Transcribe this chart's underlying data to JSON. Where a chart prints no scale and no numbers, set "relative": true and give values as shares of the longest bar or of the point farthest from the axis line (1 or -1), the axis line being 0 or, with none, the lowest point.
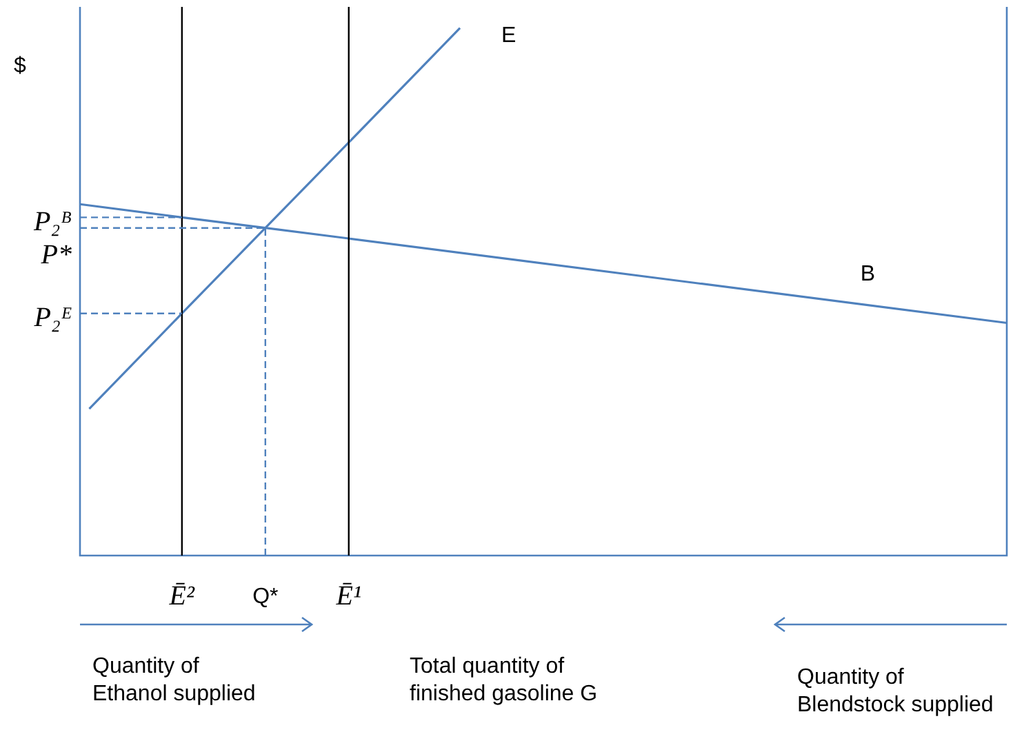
{
  "chart_data": {
    "type": "line",
    "relative": true,
    "ylabel": "$",
    "legend": false,
    "marker": "none",
    "categories": [
      null,
      null,
      null,
      null,
      null,
      null,
      null,
      null,
      null,
      null,
      null,
      "Ē²",
      null,
      null,
      null,
      null,
      null,
      null,
      null,
      null,
      "Q*",
      null,
      null,
      null,
      null,
      null,
      null,
      null,
      null,
      "Ē¹",
      null,
      null,
      null,
      null,
      null,
      null,
      null,
      null,
      null,
      null,
      null,
      null,
      null,
      null,
      null,
      null,
      null,
      null,
      null,
      null,
      null,
      null,
      null,
      null,
      null,
      null,
      null,
      null,
      null,
      null,
      null,
      null,
      null,
      null,
      null,
      null,
      null,
      null,
      null,
      null,
      null,
      null,
      null,
      null,
      null,
      null,
      null,
      null,
      null,
      null,
      null,
      null,
      null,
      null,
      null,
      null,
      null,
      null,
      null,
      null,
      null,
      null,
      null,
      null,
      null,
      null,
      null,
      null,
      null,
      null,
      null
    ],
    "series": [
      {
        "name": "E",
        "color": "#4f81bd",
        "values": [
          null,
          0.278,
          null,
          null,
          null,
          null,
          null,
          null,
          null,
          null,
          null,
          0.459,
          null,
          null,
          null,
          null,
          null,
          null,
          null,
          null,
          0.621,
          null,
          null,
          null,
          null,
          null,
          null,
          null,
          null,
          0.783,
          null,
          null,
          null,
          null,
          null,
          null,
          null,
          null,
          null,
          null,
          null,
          1,
          null,
          null,
          null,
          null,
          null,
          null,
          null,
          null,
          null,
          null,
          null,
          null,
          null,
          null,
          null,
          null,
          null,
          null,
          null,
          null,
          null,
          null,
          null,
          null,
          null,
          null,
          null,
          null,
          null,
          null,
          null,
          null,
          null,
          null,
          null,
          null,
          null,
          null,
          null,
          null,
          null,
          null,
          null,
          null,
          null,
          null,
          null,
          null,
          null,
          null,
          null,
          null,
          null,
          null,
          null,
          null,
          null,
          null,
          null
        ]
      },
      {
        "name": "B",
        "color": "#4f81bd",
        "values": [
          0.666,
          null,
          null,
          null,
          null,
          null,
          null,
          null,
          null,
          null,
          null,
          0.641,
          null,
          null,
          null,
          null,
          null,
          null,
          null,
          null,
          0.621,
          null,
          null,
          null,
          null,
          null,
          null,
          null,
          null,
          0.601,
          null,
          null,
          null,
          null,
          null,
          null,
          null,
          null,
          null,
          null,
          null,
          null,
          null,
          null,
          null,
          null,
          null,
          null,
          null,
          null,
          null,
          null,
          null,
          null,
          null,
          null,
          null,
          null,
          null,
          null,
          null,
          null,
          null,
          null,
          null,
          null,
          null,
          null,
          null,
          null,
          null,
          null,
          null,
          null,
          null,
          null,
          null,
          null,
          null,
          null,
          null,
          null,
          null,
          null,
          null,
          null,
          null,
          null,
          null,
          null,
          null,
          null,
          null,
          null,
          null,
          null,
          null,
          null,
          null,
          null,
          0.441
        ]
      }
    ],
    "ref_lines": [
      {
        "axis": "x",
        "value": "Ē²",
        "color": "#000000",
        "line_style": "solid"
      },
      {
        "axis": "x",
        "value": "Q*",
        "color": "#4f81bd",
        "line_style": "dashed"
      },
      {
        "axis": "x",
        "value": "Ē¹",
        "color": "#000000",
        "line_style": "solid"
      },
      {
        "axis": "y",
        "value": 0.641,
        "label": "P₂ᴮ",
        "color": "#4f81bd",
        "line_style": "dashed"
      },
      {
        "axis": "y",
        "value": 0.621,
        "label": "P*",
        "color": "#4f81bd",
        "line_style": "dashed"
      },
      {
        "axis": "y",
        "value": 0.459,
        "label": "P₂ᴱ",
        "color": "#4f81bd",
        "line_style": "dashed"
      }
    ],
    "annotations": [
      "Quantity of\nEthanol supplied",
      "Total quantity of\nfinished gasoline G",
      "Quantity of\nBlendstock supplied"
    ]
  }
}
